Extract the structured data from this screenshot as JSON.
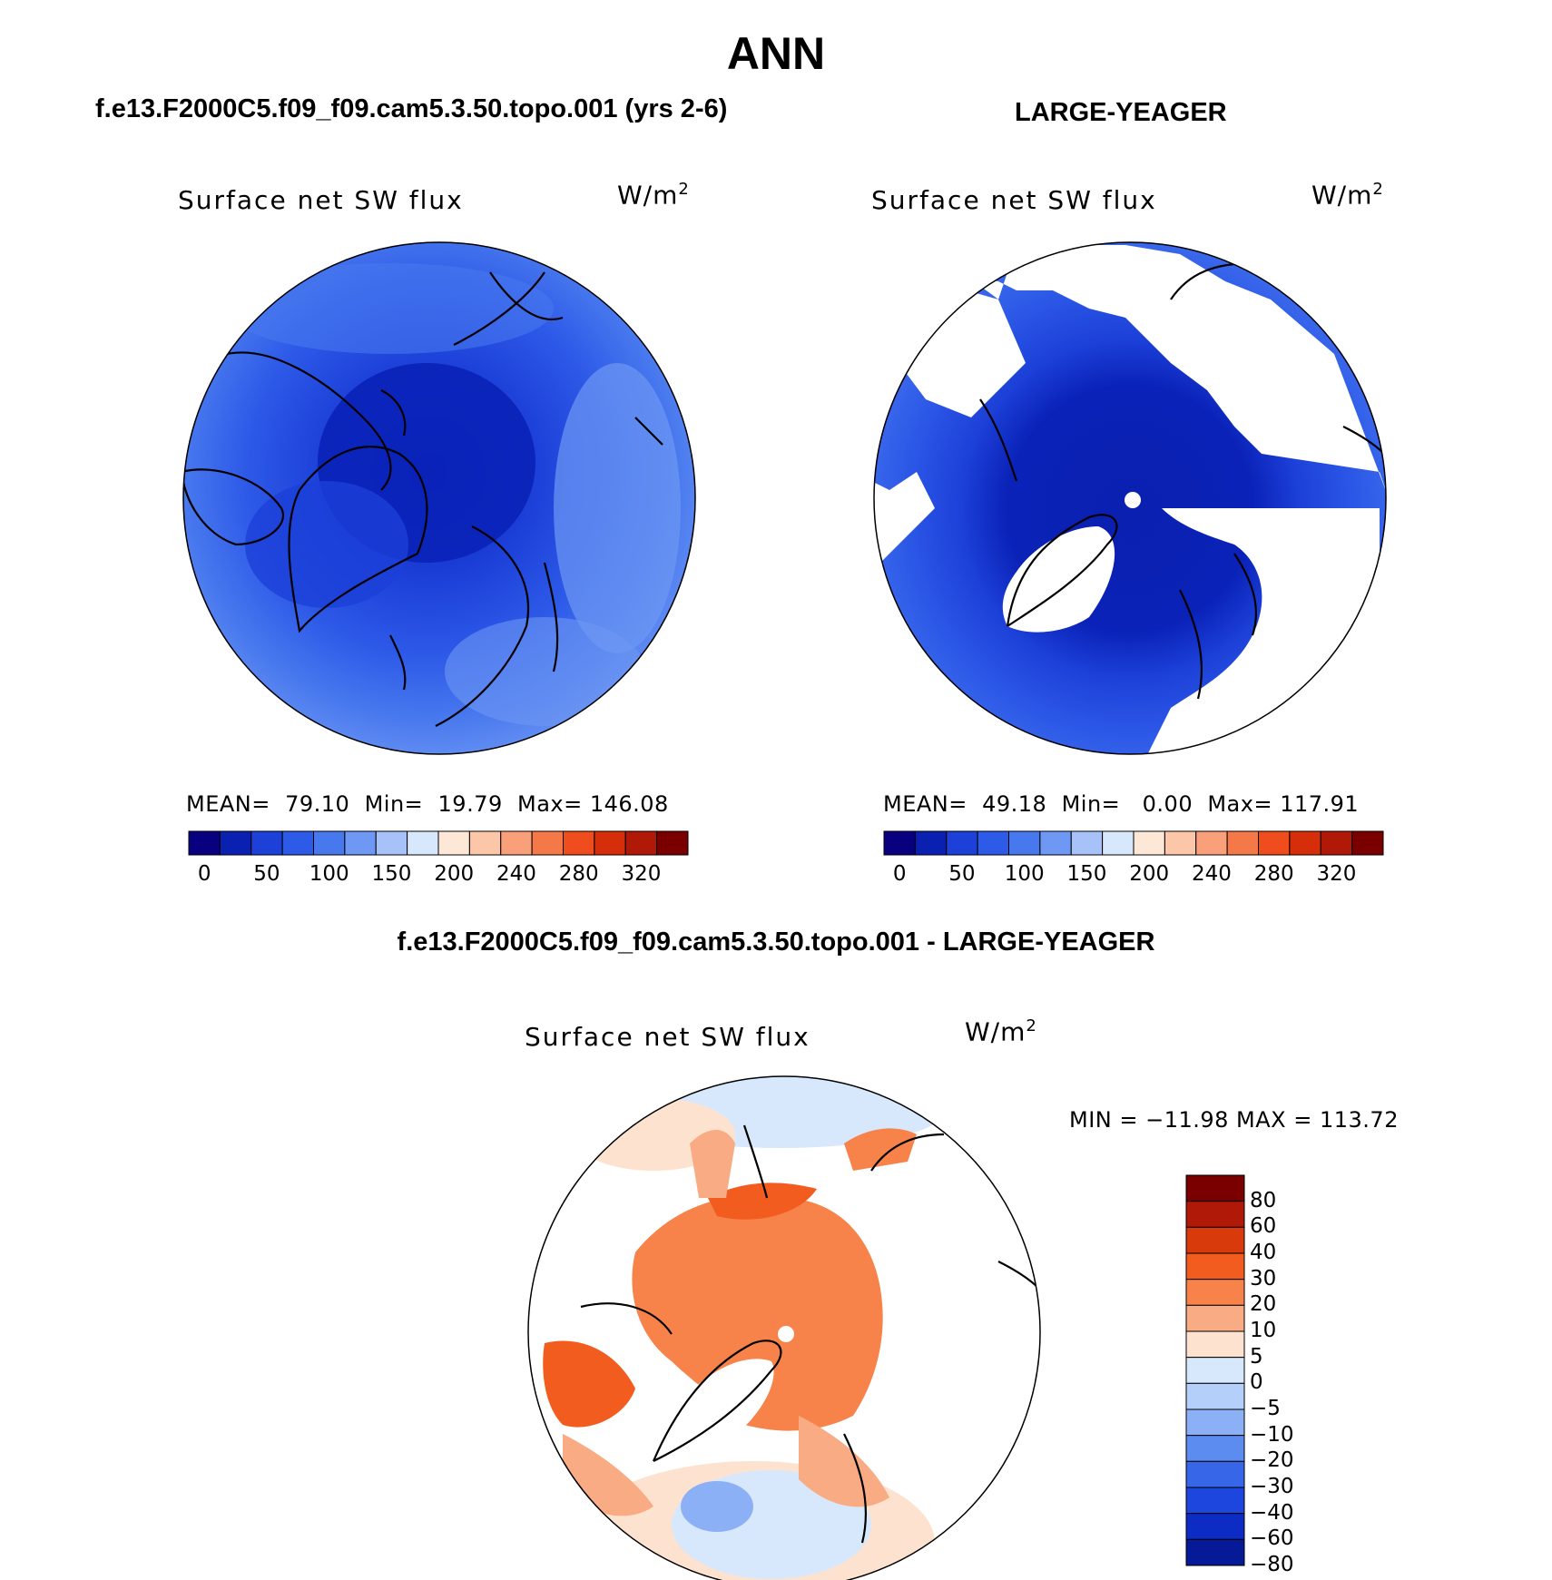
{
  "header": {
    "main_title": "ANN",
    "left_title": "f.e13.F2000C5.f09_f09.cam5.3.50.topo.001 (yrs 2-6)",
    "right_title": "LARGE-YEAGER",
    "diff_title": "f.e13.F2000C5.f09_f09.cam5.3.50.topo.001 - LARGE-YEAGER"
  },
  "panels": [
    {
      "id": "model",
      "variable": "Surface net SW flux",
      "unit_base": "W/m",
      "unit_exp": "2",
      "stats": "MEAN=  79.10  Min=  19.79  Max= 146.08"
    },
    {
      "id": "obs",
      "variable": "Surface net SW flux",
      "unit_base": "W/m",
      "unit_exp": "2",
      "stats": "MEAN=  49.18  Min=   0.00  Max= 117.91"
    },
    {
      "id": "diff",
      "variable": "Surface net SW flux",
      "unit_base": "W/m",
      "unit_exp": "2",
      "stats": "MIN = −11.98 MAX = 113.72"
    }
  ],
  "colorbar_top": {
    "colors": [
      "#08007f",
      "#0a20b0",
      "#1c40d8",
      "#2e5ae8",
      "#4878ee",
      "#6e98f4",
      "#a6c2f8",
      "#d8e8fc",
      "#fde8d8",
      "#fcc6a8",
      "#f9a07a",
      "#f57848",
      "#ef4d1e",
      "#d62d0a",
      "#b01808",
      "#7a0000"
    ],
    "tick_labels": [
      "0",
      "50",
      "100",
      "150",
      "200",
      "240",
      "280",
      "320"
    ]
  },
  "colorbar_diff": {
    "colors": [
      "#7a0000",
      "#b01808",
      "#d83a0c",
      "#f25c1e",
      "#f7834a",
      "#f9ab84",
      "#fde3cf",
      "#d8e8fc",
      "#b4cffa",
      "#8cb0f6",
      "#5c8cf0",
      "#3866e8",
      "#1c46de",
      "#0c2cc4",
      "#061a98"
    ],
    "tick_labels": [
      "80",
      "60",
      "40",
      "30",
      "20",
      "10",
      "5",
      "0",
      "−5",
      "−10",
      "−20",
      "−30",
      "−40",
      "−60",
      "−80"
    ]
  },
  "colors": {
    "land": "#ffffff",
    "coast": "#000000"
  }
}
